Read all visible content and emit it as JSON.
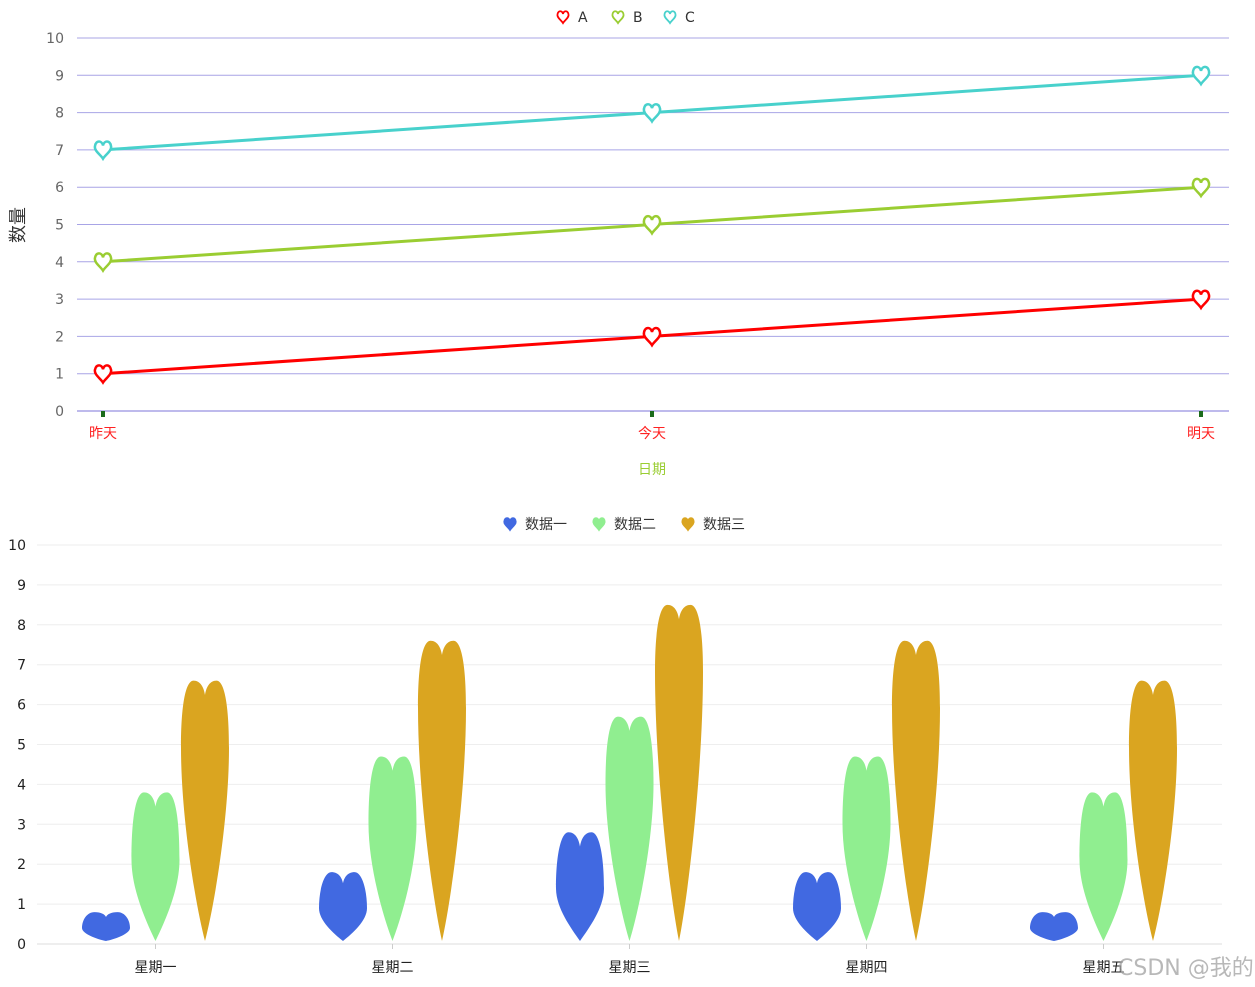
{
  "chart_data": [
    {
      "type": "line",
      "title": "",
      "xlabel": "日期",
      "ylabel": "数量",
      "categories": [
        "昨天",
        "今天",
        "明天"
      ],
      "ylim": [
        0,
        10
      ],
      "yticks": [
        0,
        1,
        2,
        3,
        4,
        5,
        6,
        7,
        8,
        9,
        10
      ],
      "grid": true,
      "legend": "top-center",
      "marker": "heart",
      "series": [
        {
          "name": "A",
          "values": [
            1,
            2,
            3
          ],
          "color": "#ff0000"
        },
        {
          "name": "B",
          "values": [
            4,
            5,
            6
          ],
          "color": "#9acd32"
        },
        {
          "name": "C",
          "values": [
            7,
            8,
            9
          ],
          "color": "#48d1cc"
        }
      ],
      "colors": {
        "grid": "#a8a4e6",
        "xtick_label": "#ff2222",
        "xlabel": "#9acd32",
        "ylabel": "#333333",
        "ytick_label": "#666666",
        "xtick_mark": "#1b6b1b"
      }
    },
    {
      "type": "bar",
      "title": "",
      "xlabel": "",
      "ylabel": "",
      "categories": [
        "星期一",
        "星期二",
        "星期三",
        "星期四",
        "星期五"
      ],
      "ylim": [
        0,
        10
      ],
      "yticks": [
        0,
        1,
        2,
        3,
        4,
        5,
        6,
        7,
        8,
        9,
        10
      ],
      "grid": true,
      "legend": "top-center",
      "bar_shape": "heart",
      "series": [
        {
          "name": "数据一",
          "values": [
            0.8,
            1.8,
            2.8,
            1.8,
            0.8
          ],
          "color": "#4169e1"
        },
        {
          "name": "数据二",
          "values": [
            3.8,
            4.7,
            5.7,
            4.7,
            3.8
          ],
          "color": "#90ee90"
        },
        {
          "name": "数据三",
          "values": [
            6.6,
            7.6,
            8.5,
            7.6,
            6.6
          ],
          "color": "#daa520"
        }
      ],
      "colors": {
        "grid": "#eeeeee",
        "axis": "#dddddd",
        "tick_label": "#222222"
      }
    }
  ],
  "watermark": "CSDN @我的..."
}
